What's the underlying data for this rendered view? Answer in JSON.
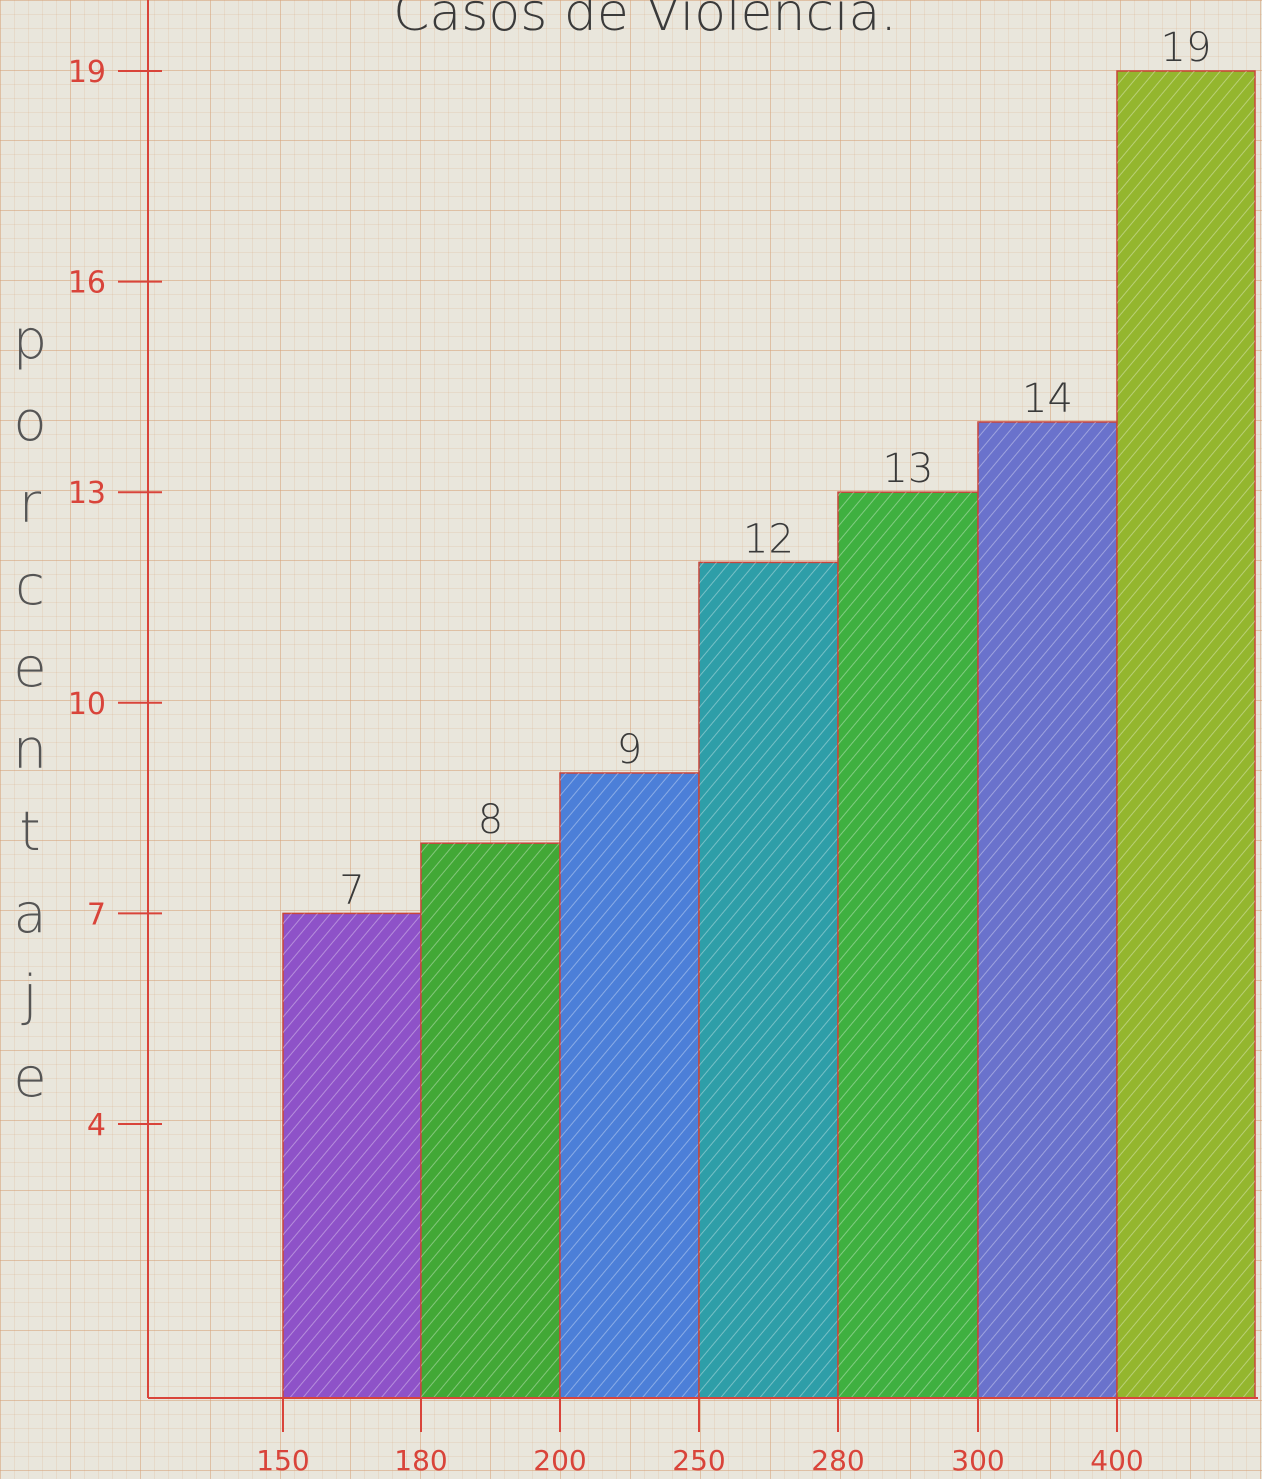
{
  "chart_data": {
    "type": "bar",
    "title": "Casos de Violencia.",
    "xlabel": "",
    "ylabel": "porcentaje",
    "x_edges": [
      150,
      180,
      200,
      250,
      280,
      300,
      400
    ],
    "x_tick_labels": [
      "150",
      "180",
      "200",
      "250",
      "280",
      "300",
      "400"
    ],
    "values": [
      7,
      8,
      9,
      12,
      13,
      14,
      19
    ],
    "data_labels": [
      "7",
      "8",
      "9",
      "12",
      "13",
      "14",
      "19"
    ],
    "y_ticks": [
      4,
      7,
      10,
      13,
      16,
      19
    ],
    "y_tick_labels": [
      "4",
      "7",
      "10",
      "13",
      "16",
      "19"
    ],
    "ylim": [
      0,
      19
    ],
    "grid": true,
    "legend": "none"
  },
  "colors": {
    "bars": [
      "#8e52c8",
      "#42a836",
      "#4c7fd8",
      "#2e9ea8",
      "#3fb040",
      "#6a72cc",
      "#94b62e"
    ],
    "axis": "#d9443a"
  }
}
